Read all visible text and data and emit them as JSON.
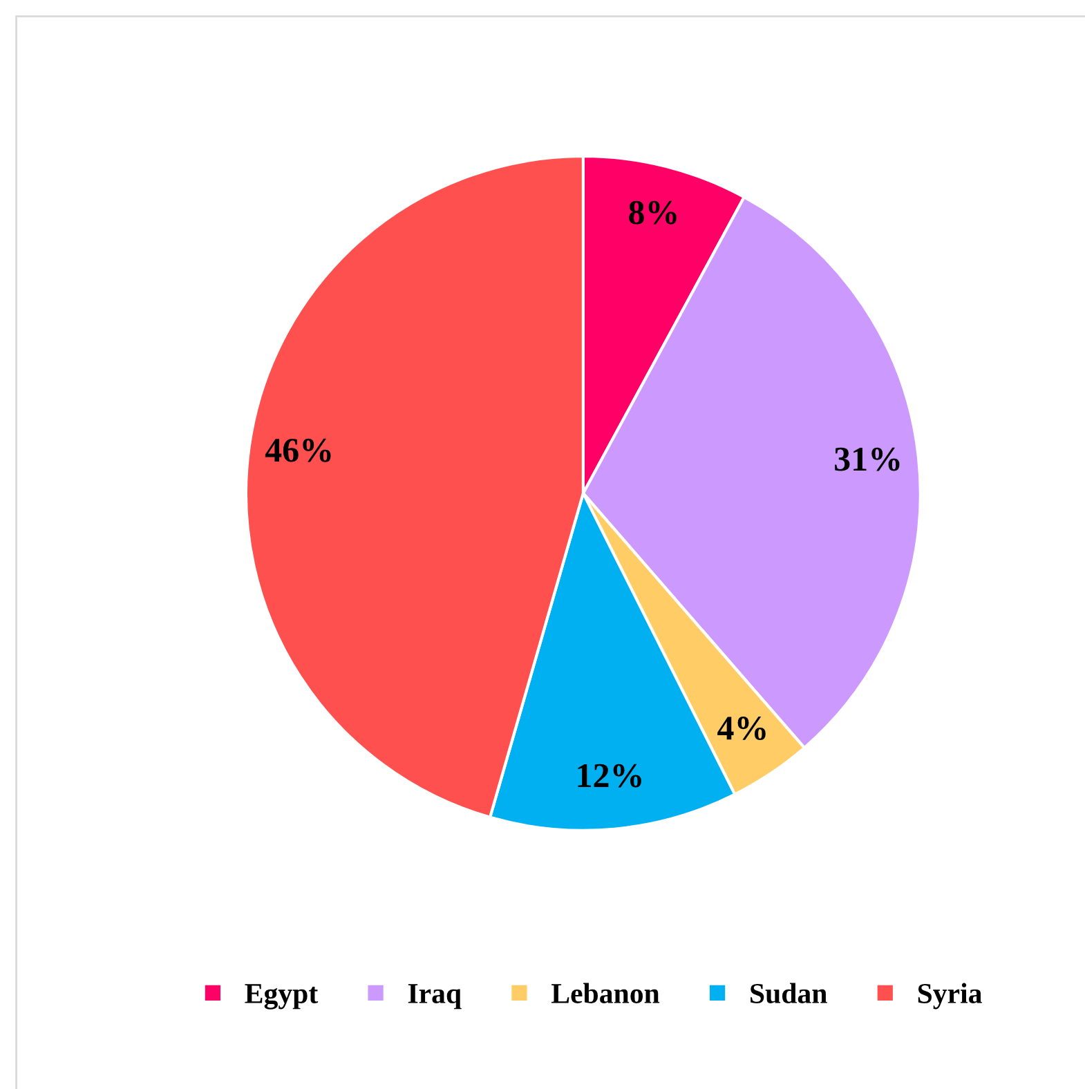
{
  "chart_data": {
    "type": "pie",
    "categories": [
      "Egypt",
      "Iraq",
      "Lebanon",
      "Sudan",
      "Syria"
    ],
    "values": [
      8,
      31,
      4,
      12,
      46
    ],
    "colors": [
      "#ff0066",
      "#cc99ff",
      "#ffcc66",
      "#00b0f0",
      "#ff5050"
    ],
    "value_labels": [
      "8%",
      "31%",
      "4%",
      "12%",
      "46%"
    ],
    "legend": "bottom"
  }
}
